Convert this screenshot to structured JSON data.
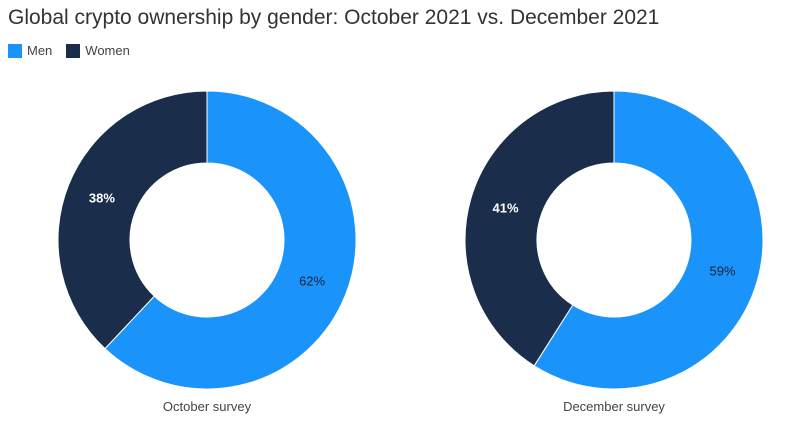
{
  "title": "Global crypto ownership by gender: October 2021 vs. December 2021",
  "legend": [
    {
      "label": "Men",
      "color": "#1a94fb"
    },
    {
      "label": "Women",
      "color": "#1a2e4b"
    }
  ],
  "chart_data": [
    {
      "type": "pie",
      "title": "Global crypto ownership by gender: October 2021 vs. December 2021",
      "donut": true,
      "caption": "October survey",
      "legend_position": "top-left",
      "slices": [
        {
          "label": "Men",
          "value": 62,
          "display": "62%",
          "color": "#1a94fb"
        },
        {
          "label": "Women",
          "value": 38,
          "display": "38%",
          "color": "#1a2e4b"
        }
      ]
    },
    {
      "type": "pie",
      "title": "Global crypto ownership by gender: October 2021 vs. December 2021",
      "donut": true,
      "caption": "December survey",
      "legend_position": "top-left",
      "slices": [
        {
          "label": "Men",
          "value": 59,
          "display": "59%",
          "color": "#1a94fb"
        },
        {
          "label": "Women",
          "value": 41,
          "display": "41%",
          "color": "#1a2e4b"
        }
      ]
    }
  ]
}
